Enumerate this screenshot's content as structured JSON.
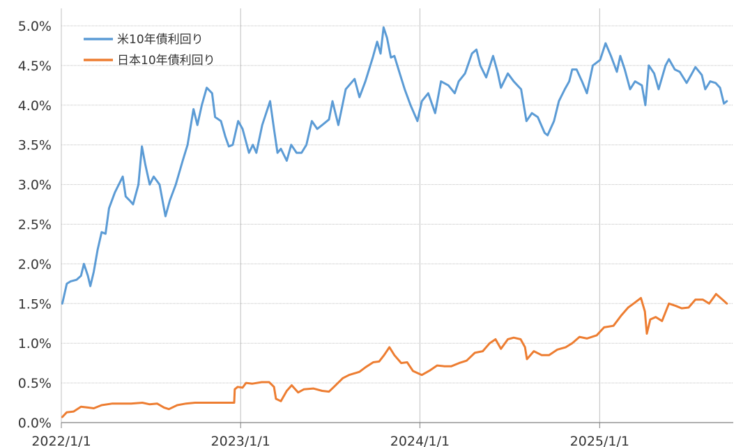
{
  "chart_data": {
    "type": "line",
    "title": "",
    "xlabel": "",
    "ylabel": "",
    "ylim": [
      0,
      5
    ],
    "y_ticks": [
      "0.0%",
      "0.5%",
      "1.0%",
      "1.5%",
      "2.0%",
      "2.5%",
      "3.0%",
      "3.5%",
      "4.0%",
      "4.5%",
      "5.0%"
    ],
    "x_ticks": [
      {
        "label": "2022/1/1",
        "date": "2022-01-01"
      },
      {
        "label": "2023/1/1",
        "date": "2023-01-01"
      },
      {
        "label": "2024/1/1",
        "date": "2024-01-01"
      },
      {
        "label": "2025/1/1",
        "date": "2025-01-01"
      }
    ],
    "xlim": [
      "2022-01-01",
      "2025-09-30"
    ],
    "grid": true,
    "legend_position": "top-left",
    "series": [
      {
        "name": "米10年債利回り",
        "color": "#5b9bd5",
        "points": [
          [
            "2022-01-03",
            1.5
          ],
          [
            "2022-01-12",
            1.75
          ],
          [
            "2022-01-20",
            1.78
          ],
          [
            "2022-02-01",
            1.8
          ],
          [
            "2022-02-10",
            1.85
          ],
          [
            "2022-02-16",
            2.0
          ],
          [
            "2022-02-24",
            1.85
          ],
          [
            "2022-03-01",
            1.72
          ],
          [
            "2022-03-08",
            1.9
          ],
          [
            "2022-03-16",
            2.18
          ],
          [
            "2022-03-24",
            2.4
          ],
          [
            "2022-04-01",
            2.38
          ],
          [
            "2022-04-08",
            2.7
          ],
          [
            "2022-04-20",
            2.9
          ],
          [
            "2022-05-06",
            3.1
          ],
          [
            "2022-05-12",
            2.85
          ],
          [
            "2022-05-20",
            2.8
          ],
          [
            "2022-05-27",
            2.75
          ],
          [
            "2022-06-07",
            3.0
          ],
          [
            "2022-06-14",
            3.48
          ],
          [
            "2022-06-21",
            3.25
          ],
          [
            "2022-06-30",
            3.0
          ],
          [
            "2022-07-08",
            3.1
          ],
          [
            "2022-07-20",
            3.0
          ],
          [
            "2022-08-01",
            2.6
          ],
          [
            "2022-08-10",
            2.8
          ],
          [
            "2022-08-22",
            3.0
          ],
          [
            "2022-09-05",
            3.3
          ],
          [
            "2022-09-15",
            3.5
          ],
          [
            "2022-09-27",
            3.95
          ],
          [
            "2022-10-05",
            3.75
          ],
          [
            "2022-10-14",
            4.0
          ],
          [
            "2022-10-24",
            4.22
          ],
          [
            "2022-11-04",
            4.15
          ],
          [
            "2022-11-10",
            3.85
          ],
          [
            "2022-11-22",
            3.8
          ],
          [
            "2022-12-01",
            3.6
          ],
          [
            "2022-12-08",
            3.48
          ],
          [
            "2022-12-16",
            3.5
          ],
          [
            "2022-12-27",
            3.8
          ],
          [
            "2023-01-05",
            3.7
          ],
          [
            "2023-01-18",
            3.4
          ],
          [
            "2023-01-26",
            3.5
          ],
          [
            "2023-02-02",
            3.4
          ],
          [
            "2023-02-14",
            3.75
          ],
          [
            "2023-03-02",
            4.05
          ],
          [
            "2023-03-10",
            3.7
          ],
          [
            "2023-03-17",
            3.4
          ],
          [
            "2023-03-24",
            3.45
          ],
          [
            "2023-04-05",
            3.3
          ],
          [
            "2023-04-14",
            3.5
          ],
          [
            "2023-04-25",
            3.4
          ],
          [
            "2023-05-05",
            3.4
          ],
          [
            "2023-05-15",
            3.5
          ],
          [
            "2023-05-26",
            3.8
          ],
          [
            "2023-06-06",
            3.7
          ],
          [
            "2023-06-16",
            3.75
          ],
          [
            "2023-06-30",
            3.82
          ],
          [
            "2023-07-07",
            4.05
          ],
          [
            "2023-07-19",
            3.75
          ],
          [
            "2023-08-03",
            4.2
          ],
          [
            "2023-08-21",
            4.33
          ],
          [
            "2023-08-31",
            4.1
          ],
          [
            "2023-09-12",
            4.3
          ],
          [
            "2023-09-27",
            4.6
          ],
          [
            "2023-10-06",
            4.8
          ],
          [
            "2023-10-13",
            4.65
          ],
          [
            "2023-10-19",
            4.98
          ],
          [
            "2023-10-26",
            4.85
          ],
          [
            "2023-11-03",
            4.6
          ],
          [
            "2023-11-10",
            4.62
          ],
          [
            "2023-11-21",
            4.4
          ],
          [
            "2023-12-01",
            4.2
          ],
          [
            "2023-12-13",
            4.0
          ],
          [
            "2023-12-27",
            3.8
          ],
          [
            "2024-01-05",
            4.05
          ],
          [
            "2024-01-18",
            4.15
          ],
          [
            "2024-02-01",
            3.9
          ],
          [
            "2024-02-13",
            4.3
          ],
          [
            "2024-02-28",
            4.25
          ],
          [
            "2024-03-12",
            4.15
          ],
          [
            "2024-03-20",
            4.3
          ],
          [
            "2024-04-02",
            4.4
          ],
          [
            "2024-04-16",
            4.65
          ],
          [
            "2024-04-25",
            4.7
          ],
          [
            "2024-05-03",
            4.5
          ],
          [
            "2024-05-15",
            4.35
          ],
          [
            "2024-05-29",
            4.62
          ],
          [
            "2024-06-07",
            4.42
          ],
          [
            "2024-06-14",
            4.22
          ],
          [
            "2024-06-28",
            4.4
          ],
          [
            "2024-07-10",
            4.3
          ],
          [
            "2024-07-25",
            4.2
          ],
          [
            "2024-08-05",
            3.8
          ],
          [
            "2024-08-16",
            3.9
          ],
          [
            "2024-08-28",
            3.85
          ],
          [
            "2024-09-11",
            3.65
          ],
          [
            "2024-09-17",
            3.62
          ],
          [
            "2024-09-30",
            3.8
          ],
          [
            "2024-10-10",
            4.05
          ],
          [
            "2024-10-22",
            4.2
          ],
          [
            "2024-10-31",
            4.3
          ],
          [
            "2024-11-06",
            4.45
          ],
          [
            "2024-11-15",
            4.45
          ],
          [
            "2024-11-26",
            4.3
          ],
          [
            "2024-12-06",
            4.15
          ],
          [
            "2024-12-18",
            4.5
          ],
          [
            "2025-01-02",
            4.57
          ],
          [
            "2025-01-13",
            4.78
          ],
          [
            "2025-01-24",
            4.62
          ],
          [
            "2025-02-05",
            4.42
          ],
          [
            "2025-02-12",
            4.62
          ],
          [
            "2025-02-21",
            4.45
          ],
          [
            "2025-03-04",
            4.2
          ],
          [
            "2025-03-14",
            4.3
          ],
          [
            "2025-03-28",
            4.25
          ],
          [
            "2025-04-04",
            4.0
          ],
          [
            "2025-04-11",
            4.5
          ],
          [
            "2025-04-22",
            4.4
          ],
          [
            "2025-05-01",
            4.2
          ],
          [
            "2025-05-15",
            4.5
          ],
          [
            "2025-05-22",
            4.58
          ],
          [
            "2025-06-03",
            4.45
          ],
          [
            "2025-06-13",
            4.42
          ],
          [
            "2025-06-27",
            4.28
          ],
          [
            "2025-07-08",
            4.4
          ],
          [
            "2025-07-15",
            4.48
          ],
          [
            "2025-07-28",
            4.38
          ],
          [
            "2025-08-04",
            4.2
          ],
          [
            "2025-08-14",
            4.3
          ],
          [
            "2025-08-25",
            4.28
          ],
          [
            "2025-09-03",
            4.22
          ],
          [
            "2025-09-11",
            4.02
          ],
          [
            "2025-09-17",
            4.05
          ]
        ]
      },
      {
        "name": "日本10年債利回り",
        "color": "#ed7d31",
        "points": [
          [
            "2022-01-03",
            0.07
          ],
          [
            "2022-01-12",
            0.13
          ],
          [
            "2022-01-26",
            0.14
          ],
          [
            "2022-02-10",
            0.2
          ],
          [
            "2022-02-24",
            0.19
          ],
          [
            "2022-03-08",
            0.18
          ],
          [
            "2022-03-24",
            0.22
          ],
          [
            "2022-04-15",
            0.24
          ],
          [
            "2022-05-02",
            0.24
          ],
          [
            "2022-05-23",
            0.24
          ],
          [
            "2022-06-15",
            0.25
          ],
          [
            "2022-06-30",
            0.23
          ],
          [
            "2022-07-15",
            0.24
          ],
          [
            "2022-07-29",
            0.19
          ],
          [
            "2022-08-08",
            0.17
          ],
          [
            "2022-08-25",
            0.22
          ],
          [
            "2022-09-12",
            0.24
          ],
          [
            "2022-09-30",
            0.25
          ],
          [
            "2022-10-20",
            0.25
          ],
          [
            "2022-11-15",
            0.25
          ],
          [
            "2022-12-19",
            0.25
          ],
          [
            "2022-12-20",
            0.42
          ],
          [
            "2022-12-26",
            0.45
          ],
          [
            "2023-01-05",
            0.44
          ],
          [
            "2023-01-12",
            0.5
          ],
          [
            "2023-01-25",
            0.49
          ],
          [
            "2023-02-13",
            0.51
          ],
          [
            "2023-02-28",
            0.51
          ],
          [
            "2023-03-10",
            0.45
          ],
          [
            "2023-03-14",
            0.3
          ],
          [
            "2023-03-24",
            0.27
          ],
          [
            "2023-04-05",
            0.4
          ],
          [
            "2023-04-15",
            0.47
          ],
          [
            "2023-04-28",
            0.38
          ],
          [
            "2023-05-10",
            0.42
          ],
          [
            "2023-05-29",
            0.43
          ],
          [
            "2023-06-16",
            0.4
          ],
          [
            "2023-06-30",
            0.39
          ],
          [
            "2023-07-10",
            0.45
          ],
          [
            "2023-07-28",
            0.56
          ],
          [
            "2023-08-10",
            0.6
          ],
          [
            "2023-08-31",
            0.64
          ],
          [
            "2023-09-13",
            0.7
          ],
          [
            "2023-09-28",
            0.76
          ],
          [
            "2023-10-10",
            0.77
          ],
          [
            "2023-10-20",
            0.85
          ],
          [
            "2023-10-31",
            0.95
          ],
          [
            "2023-11-10",
            0.85
          ],
          [
            "2023-11-24",
            0.75
          ],
          [
            "2023-12-06",
            0.76
          ],
          [
            "2023-12-18",
            0.65
          ],
          [
            "2024-01-05",
            0.6
          ],
          [
            "2024-01-22",
            0.66
          ],
          [
            "2024-02-05",
            0.72
          ],
          [
            "2024-02-20",
            0.71
          ],
          [
            "2024-03-05",
            0.71
          ],
          [
            "2024-03-21",
            0.75
          ],
          [
            "2024-04-05",
            0.78
          ],
          [
            "2024-04-22",
            0.88
          ],
          [
            "2024-05-08",
            0.9
          ],
          [
            "2024-05-22",
            1.0
          ],
          [
            "2024-06-03",
            1.05
          ],
          [
            "2024-06-14",
            0.93
          ],
          [
            "2024-06-28",
            1.05
          ],
          [
            "2024-07-10",
            1.07
          ],
          [
            "2024-07-24",
            1.05
          ],
          [
            "2024-08-02",
            0.95
          ],
          [
            "2024-08-06",
            0.8
          ],
          [
            "2024-08-20",
            0.9
          ],
          [
            "2024-09-05",
            0.85
          ],
          [
            "2024-09-20",
            0.85
          ],
          [
            "2024-10-07",
            0.92
          ],
          [
            "2024-10-24",
            0.95
          ],
          [
            "2024-11-06",
            1.0
          ],
          [
            "2024-11-21",
            1.08
          ],
          [
            "2024-12-06",
            1.06
          ],
          [
            "2024-12-26",
            1.1
          ],
          [
            "2025-01-10",
            1.2
          ],
          [
            "2025-01-29",
            1.22
          ],
          [
            "2025-02-14",
            1.35
          ],
          [
            "2025-02-28",
            1.45
          ],
          [
            "2025-03-11",
            1.5
          ],
          [
            "2025-03-26",
            1.57
          ],
          [
            "2025-04-03",
            1.4
          ],
          [
            "2025-04-07",
            1.12
          ],
          [
            "2025-04-14",
            1.3
          ],
          [
            "2025-04-25",
            1.33
          ],
          [
            "2025-05-08",
            1.28
          ],
          [
            "2025-05-22",
            1.5
          ],
          [
            "2025-06-05",
            1.47
          ],
          [
            "2025-06-17",
            1.44
          ],
          [
            "2025-07-01",
            1.45
          ],
          [
            "2025-07-15",
            1.55
          ],
          [
            "2025-07-30",
            1.55
          ],
          [
            "2025-08-12",
            1.5
          ],
          [
            "2025-08-26",
            1.62
          ],
          [
            "2025-09-08",
            1.55
          ],
          [
            "2025-09-17",
            1.5
          ]
        ]
      }
    ]
  }
}
